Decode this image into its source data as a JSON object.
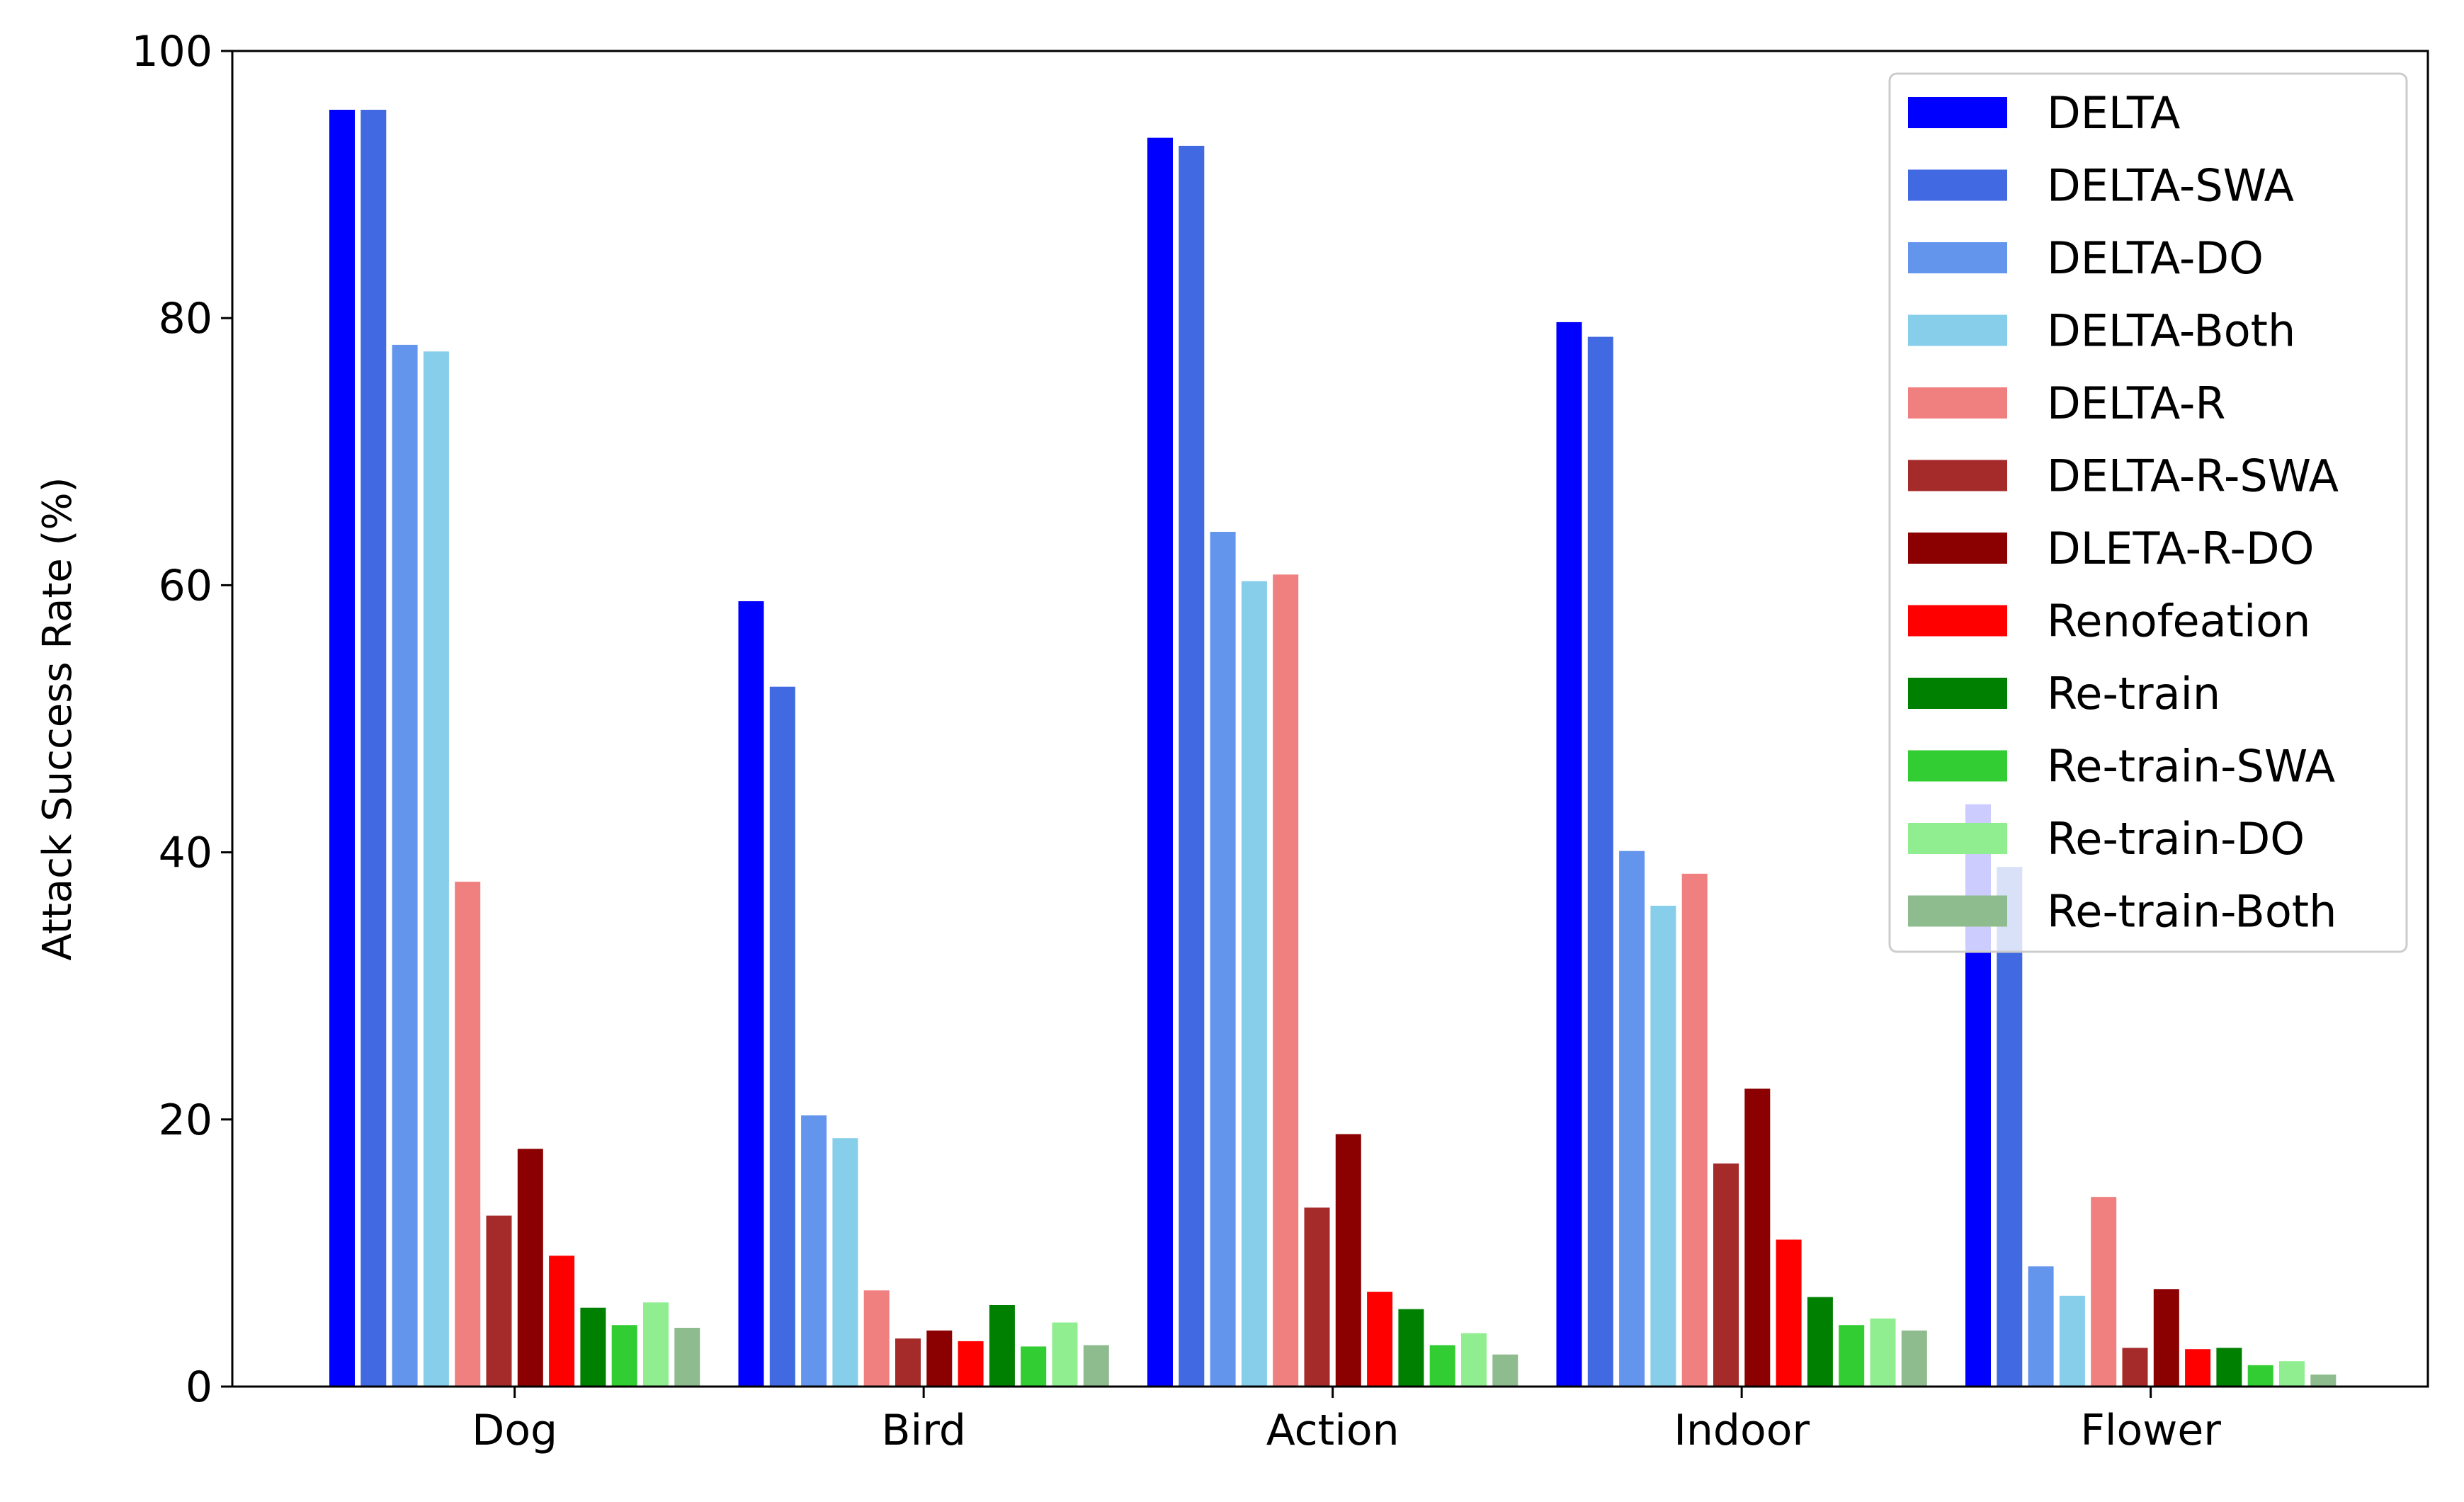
{
  "chart_data": {
    "type": "bar",
    "title": "",
    "xlabel": "",
    "ylabel": "Attack Success Rate (%)",
    "ylim": [
      0,
      100
    ],
    "yticks": [
      0,
      20,
      40,
      60,
      80,
      100
    ],
    "grid": false,
    "legend_position": "top-right",
    "categories": [
      "Dog",
      "Bird",
      "Action",
      "Indoor",
      "Flower"
    ],
    "series": [
      {
        "name": "DELTA",
        "color": "#0000ff",
        "values": [
          95.6,
          58.8,
          93.5,
          79.7,
          43.6
        ]
      },
      {
        "name": "DELTA-SWA",
        "color": "#4169e1",
        "values": [
          95.6,
          52.4,
          92.9,
          78.6,
          38.9
        ]
      },
      {
        "name": "DELTA-DO",
        "color": "#6495ed",
        "values": [
          78.0,
          20.3,
          64.0,
          40.1,
          9.0
        ]
      },
      {
        "name": "DELTA-Both",
        "color": "#87ceeb",
        "values": [
          77.5,
          18.6,
          60.3,
          36.0,
          6.8
        ]
      },
      {
        "name": "DELTA-R",
        "color": "#f08080",
        "values": [
          37.8,
          7.2,
          60.8,
          38.4,
          14.2
        ]
      },
      {
        "name": "DELTA-R-SWA",
        "color": "#a52a2a",
        "values": [
          12.8,
          3.6,
          13.4,
          16.7,
          2.9
        ]
      },
      {
        "name": "DLETA-R-DO",
        "color": "#8b0000",
        "values": [
          17.8,
          4.2,
          18.9,
          22.3,
          7.3
        ]
      },
      {
        "name": "Renofeation",
        "color": "#ff0000",
        "values": [
          9.8,
          3.4,
          7.1,
          11.0,
          2.8
        ]
      },
      {
        "name": "Re-train",
        "color": "#008000",
        "values": [
          5.9,
          6.1,
          5.8,
          6.7,
          2.9
        ]
      },
      {
        "name": "Re-train-SWA",
        "color": "#32cd32",
        "values": [
          4.6,
          3.0,
          3.1,
          4.6,
          1.6
        ]
      },
      {
        "name": "Re-train-DO",
        "color": "#90ee90",
        "values": [
          6.3,
          4.8,
          4.0,
          5.1,
          1.9
        ]
      },
      {
        "name": "Re-train-Both",
        "color": "#8fbc8f",
        "values": [
          4.4,
          3.1,
          2.4,
          4.2,
          0.9
        ]
      }
    ]
  }
}
